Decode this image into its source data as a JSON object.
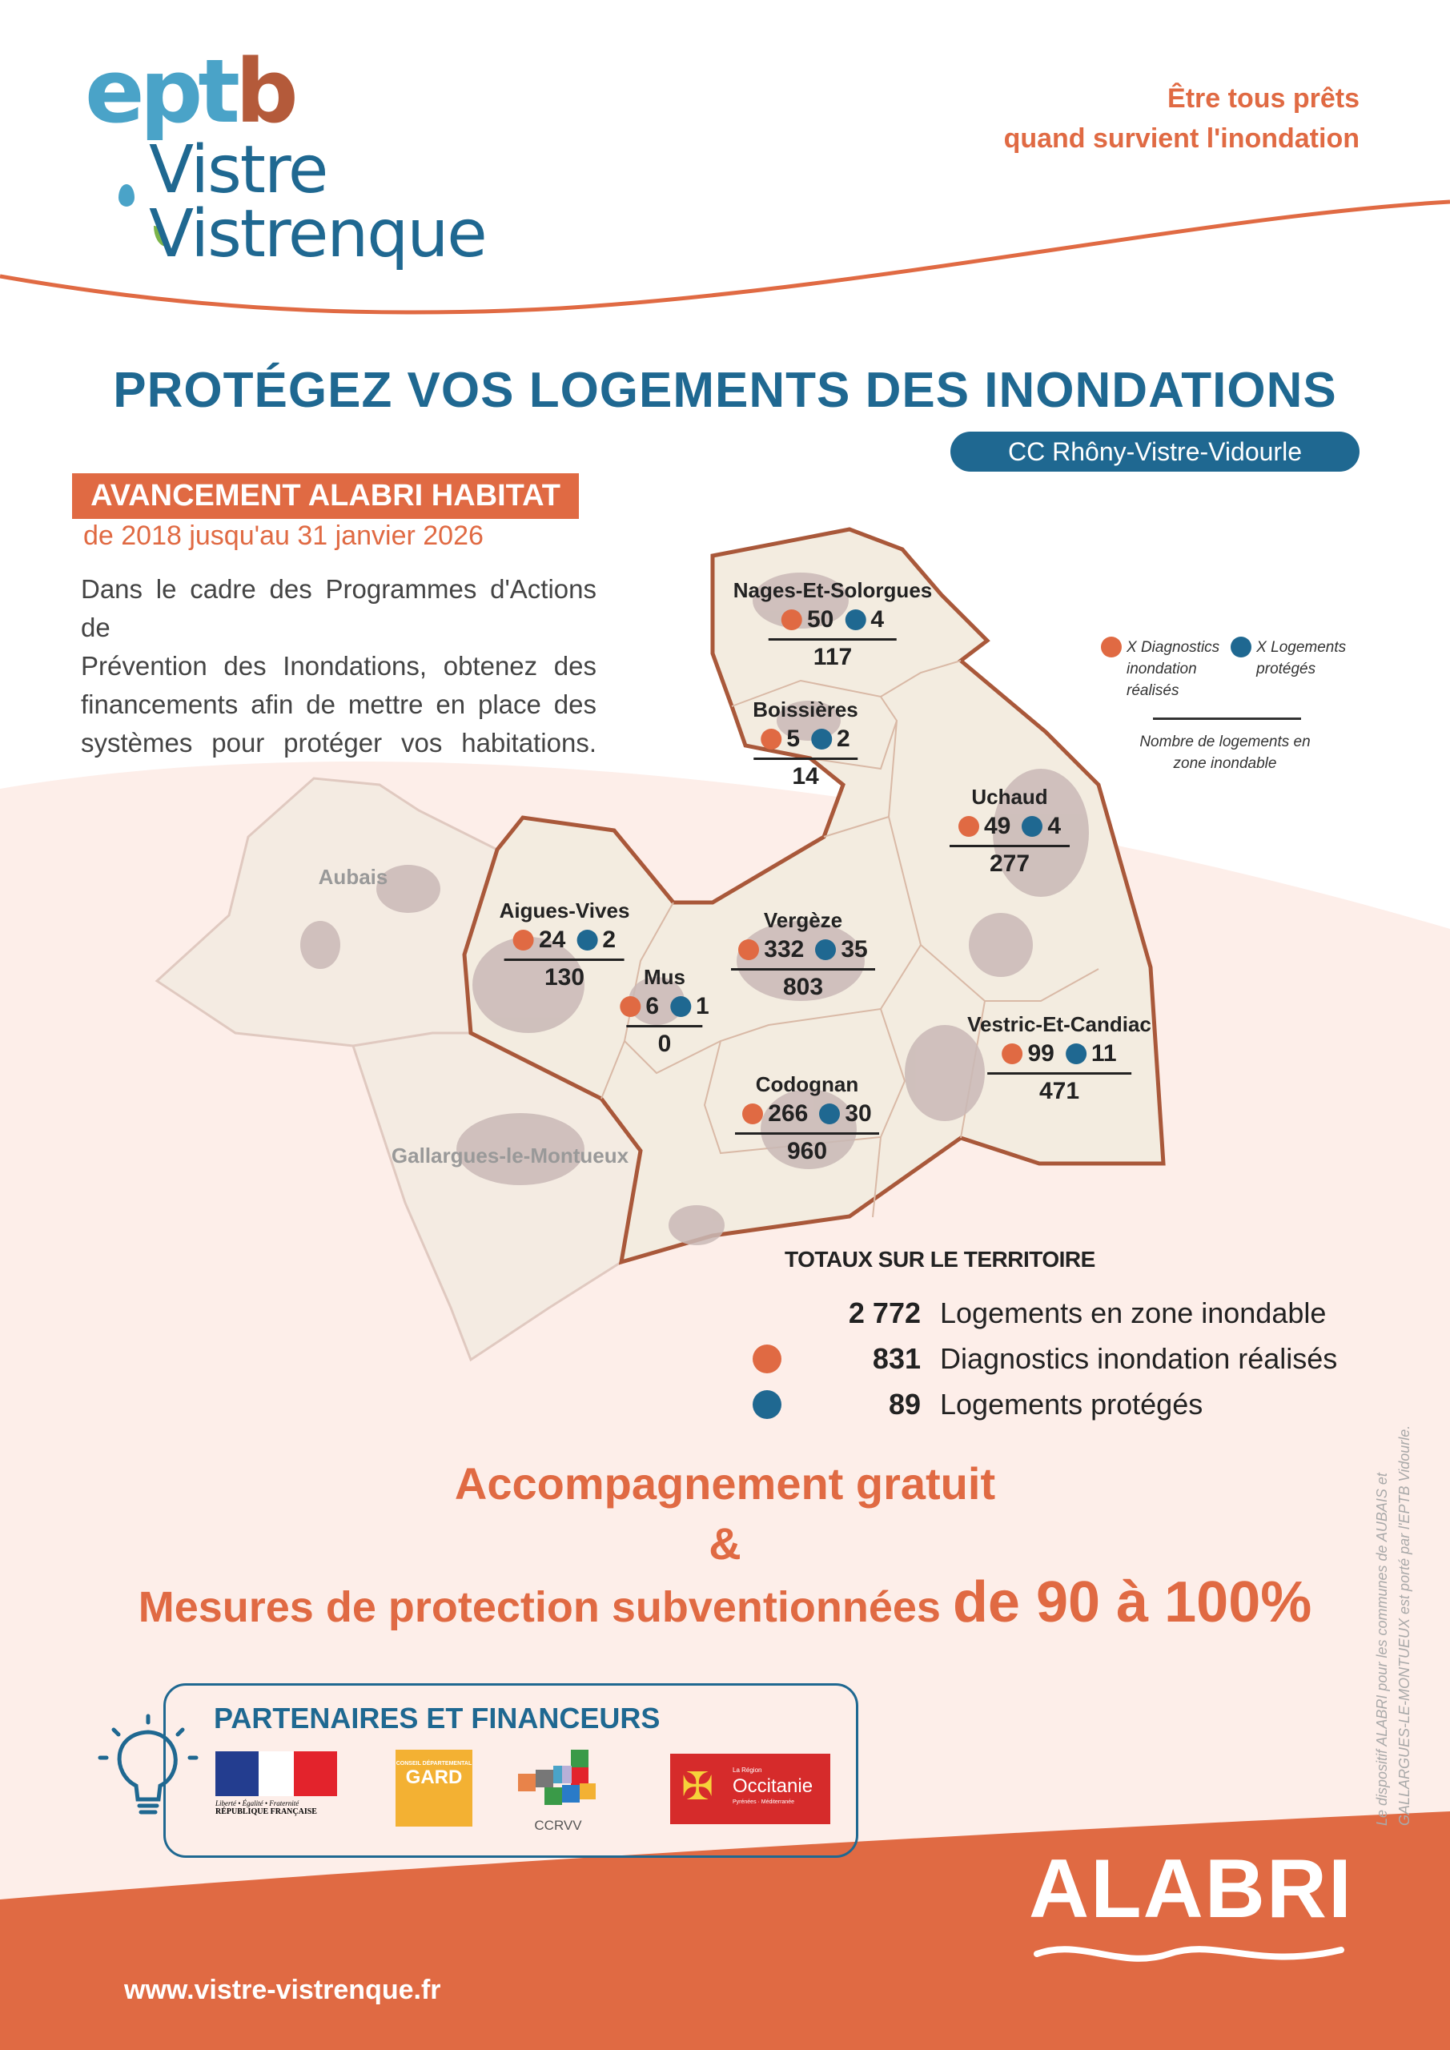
{
  "header": {
    "logo_text": "eptb Vistre Vistrenque",
    "logo_lines": [
      "ept",
      "b",
      "Vistre",
      "Vistrenque"
    ],
    "tagline_lines": [
      "Être tous prêts",
      "quand survient l'inondation"
    ]
  },
  "title": "PROTÉGEZ VOS LOGEMENTS DES INONDATIONS",
  "territory": "CC Rhôny-Vistre-Vidourle",
  "progress": {
    "heading": "AVANCEMENT ALABRI HABITAT",
    "period": "de 2018 jusqu'au 31 janvier 2026",
    "paragraph_lines": [
      "Dans le cadre des Programmes d'Actions de",
      "Prévention des Inondations, obtenez des",
      "financements afin de mettre en place des",
      "systèmes pour protéger vos habitations."
    ]
  },
  "map": {
    "communes": [
      {
        "name": "Nages-Et-Solorgues",
        "diagnostics": 50,
        "protected": 4,
        "flood_zone_homes": 117
      },
      {
        "name": "Boissières",
        "diagnostics": 5,
        "protected": 2,
        "flood_zone_homes": 14
      },
      {
        "name": "Uchaud",
        "diagnostics": 49,
        "protected": 4,
        "flood_zone_homes": 277
      },
      {
        "name": "Aigues-Vives",
        "diagnostics": 24,
        "protected": 2,
        "flood_zone_homes": 130
      },
      {
        "name": "Mus",
        "diagnostics": 6,
        "protected": 1,
        "flood_zone_homes": 0
      },
      {
        "name": "Vergèze",
        "diagnostics": 332,
        "protected": 35,
        "flood_zone_homes": 803
      },
      {
        "name": "Vestric-Et-Candiac",
        "diagnostics": 99,
        "protected": 11,
        "flood_zone_homes": 471
      },
      {
        "name": "Codognan",
        "diagnostics": 266,
        "protected": 30,
        "flood_zone_homes": 960
      }
    ],
    "other_communes": [
      "Aubais",
      "Gallargues-le-Montueux"
    ],
    "legend": {
      "diagnostics_lines": [
        "X Diagnostics",
        "inondation",
        "réalisés"
      ],
      "protected_lines": [
        "X Logements",
        "protégés"
      ],
      "total_lines": [
        "Nombre de logements en",
        "zone inondable"
      ]
    },
    "colors": {
      "diagnostics": "#e06a43",
      "protected": "#1f6891",
      "border": "#a9583a"
    }
  },
  "totals": {
    "heading": "TOTAUX SUR LE TERRITOIRE",
    "rows": [
      {
        "value": "2 772",
        "label": "Logements en zone inondable"
      },
      {
        "value": "831",
        "label": "Diagnostics inondation réalisés"
      },
      {
        "value": "89",
        "label": "Logements protégés"
      }
    ]
  },
  "offer": {
    "line1": "Accompagnement gratuit",
    "amp": "&",
    "line3": "Mesures de protection subventionnées",
    "line3_big": "de 90 à 100%"
  },
  "partners": {
    "heading": "PARTENAIRES ET FINANCEURS",
    "logos": [
      {
        "name": "République Française",
        "text": [
          "Liberté • Égalité • Fraternité",
          "RÉPUBLIQUE FRANÇAISE"
        ]
      },
      {
        "name": "Gard",
        "text": [
          "CONSEIL DÉPARTEMENTAL",
          "GARD"
        ]
      },
      {
        "name": "CCRVV",
        "text": [
          "CCRVV"
        ]
      },
      {
        "name": "Occitanie",
        "text": [
          "La Région",
          "Occitanie",
          "Pyrénées · Méditerranée"
        ]
      }
    ]
  },
  "disclaimer_lines": [
    "Le dispositif ALABRI pour les communes de AUBAIS et",
    "GALLARGUES-LE-MONTUEUX est porté par l'EPTB Vidourle."
  ],
  "footer": {
    "url": "www.vistre-vistrenque.fr",
    "brand": "ALABRI"
  },
  "colors": {
    "orange": "#e06a43",
    "blue": "#1f6891",
    "pink_bg": "#fdeee9"
  }
}
